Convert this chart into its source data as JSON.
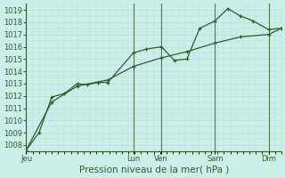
{
  "xlabel": "Pression niveau de la mer( hPa )",
  "background_color": "#cceee8",
  "grid_color_minor": "#bbddd8",
  "grid_color_major": "#aacccc",
  "line_color": "#2d5e2d",
  "day_line_color": "#557755",
  "ylim": [
    1007.5,
    1019.5
  ],
  "yticks": [
    1008,
    1009,
    1010,
    1011,
    1012,
    1013,
    1014,
    1015,
    1016,
    1017,
    1018,
    1019
  ],
  "day_labels": [
    "Jeu",
    "Lun",
    "Ven",
    "Sam",
    "Dim"
  ],
  "day_positions": [
    0.0,
    0.42,
    0.53,
    0.74,
    0.95
  ],
  "xlim": [
    0.0,
    1.0
  ],
  "line1_x": [
    0.0,
    0.05,
    0.1,
    0.15,
    0.2,
    0.24,
    0.28,
    0.32,
    0.42,
    0.47,
    0.53,
    0.58,
    0.63,
    0.68,
    0.74,
    0.79,
    0.84,
    0.89,
    0.95,
    1.0
  ],
  "line1_y": [
    1007.6,
    1009.0,
    1011.9,
    1012.2,
    1013.0,
    1012.9,
    1013.1,
    1013.1,
    1015.5,
    1015.8,
    1016.0,
    1014.9,
    1015.0,
    1017.5,
    1018.1,
    1019.1,
    1018.5,
    1018.1,
    1017.4,
    1017.5
  ],
  "line2_x": [
    0.0,
    0.1,
    0.2,
    0.32,
    0.42,
    0.53,
    0.63,
    0.74,
    0.84,
    0.95,
    1.0
  ],
  "line2_y": [
    1007.6,
    1011.5,
    1012.8,
    1013.3,
    1014.4,
    1015.1,
    1015.6,
    1016.3,
    1016.8,
    1017.0,
    1017.5
  ],
  "tick_fontsize": 6,
  "label_fontsize": 7.5,
  "marker_size": 3.0,
  "line_width": 0.9
}
